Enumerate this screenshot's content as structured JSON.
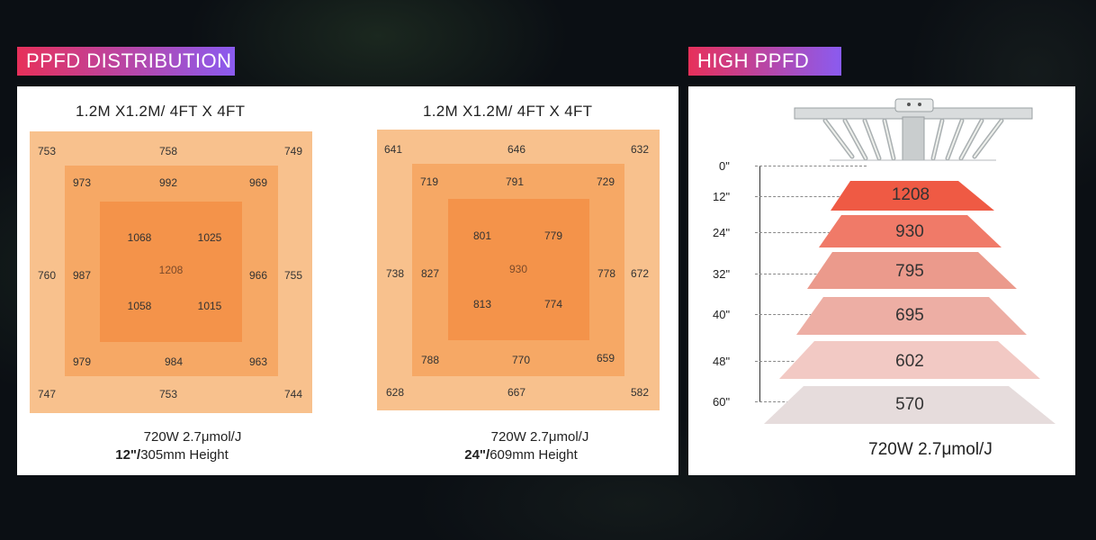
{
  "headers": {
    "distribution": "PPFD DISTRIBUTION",
    "high": "HIGH PPFD"
  },
  "colors": {
    "outer": "#f8c18d",
    "middle": "#f6a865",
    "inner": "#f4934a",
    "tag_gradient_start": "#e7305a",
    "tag_gradient_end": "#8a5bf0"
  },
  "maps": [
    {
      "title": "1.2M X1.2M/ 4FT X 4FT",
      "outer": {
        "tl": "753",
        "tc": "758",
        "tr": "749",
        "ml": "760",
        "mr": "755",
        "bl": "747",
        "bc": "753",
        "br": "744"
      },
      "middle": {
        "tl": "973",
        "tc": "992",
        "tr": "969",
        "ml": "987",
        "mr": "966",
        "bl": "979",
        "bc": "984",
        "br": "963"
      },
      "inner": {
        "tl": "1068",
        "tr": "1025",
        "c": "1208",
        "bl": "1058",
        "br": "1015"
      },
      "caption_line1": "720W  2.7μmol/J",
      "caption_height_bold": "12\"/",
      "caption_height_rest": "305mm Height"
    },
    {
      "title": "1.2M X1.2M/ 4FT X 4FT",
      "outer": {
        "tl": "641",
        "tc": "646",
        "tr": "632",
        "ml": "738",
        "mr": "672",
        "bl": "628",
        "bc": "667",
        "br": "582"
      },
      "middle": {
        "tl": "719",
        "tc": "791",
        "tr": "729",
        "ml": "827",
        "mr": "778",
        "bl": "788",
        "bc": "770",
        "br": "659"
      },
      "inner": {
        "tl": "801",
        "tr": "779",
        "c": "930",
        "bl": "813",
        "br": "774"
      },
      "caption_line1": "720W  2.7μmol/J",
      "caption_height_bold": "24\"/",
      "caption_height_rest": "609mm Height"
    }
  ],
  "high_ppfd": {
    "levels": [
      {
        "height": "0\"",
        "value": ""
      },
      {
        "height": "12\"",
        "value": "1208",
        "color": "#ef5a44"
      },
      {
        "height": "24\"",
        "value": "930",
        "color": "#f07a68"
      },
      {
        "height": "32\"",
        "value": "795",
        "color": "#eb9a8c"
      },
      {
        "height": "40\"",
        "value": "695",
        "color": "#edaeA4"
      },
      {
        "height": "48\"",
        "value": "602",
        "color": "#f2c9c4"
      },
      {
        "height": "60\"",
        "value": "570",
        "color": "#e6dcdc"
      }
    ],
    "caption": "720W  2.7μmol/J"
  }
}
